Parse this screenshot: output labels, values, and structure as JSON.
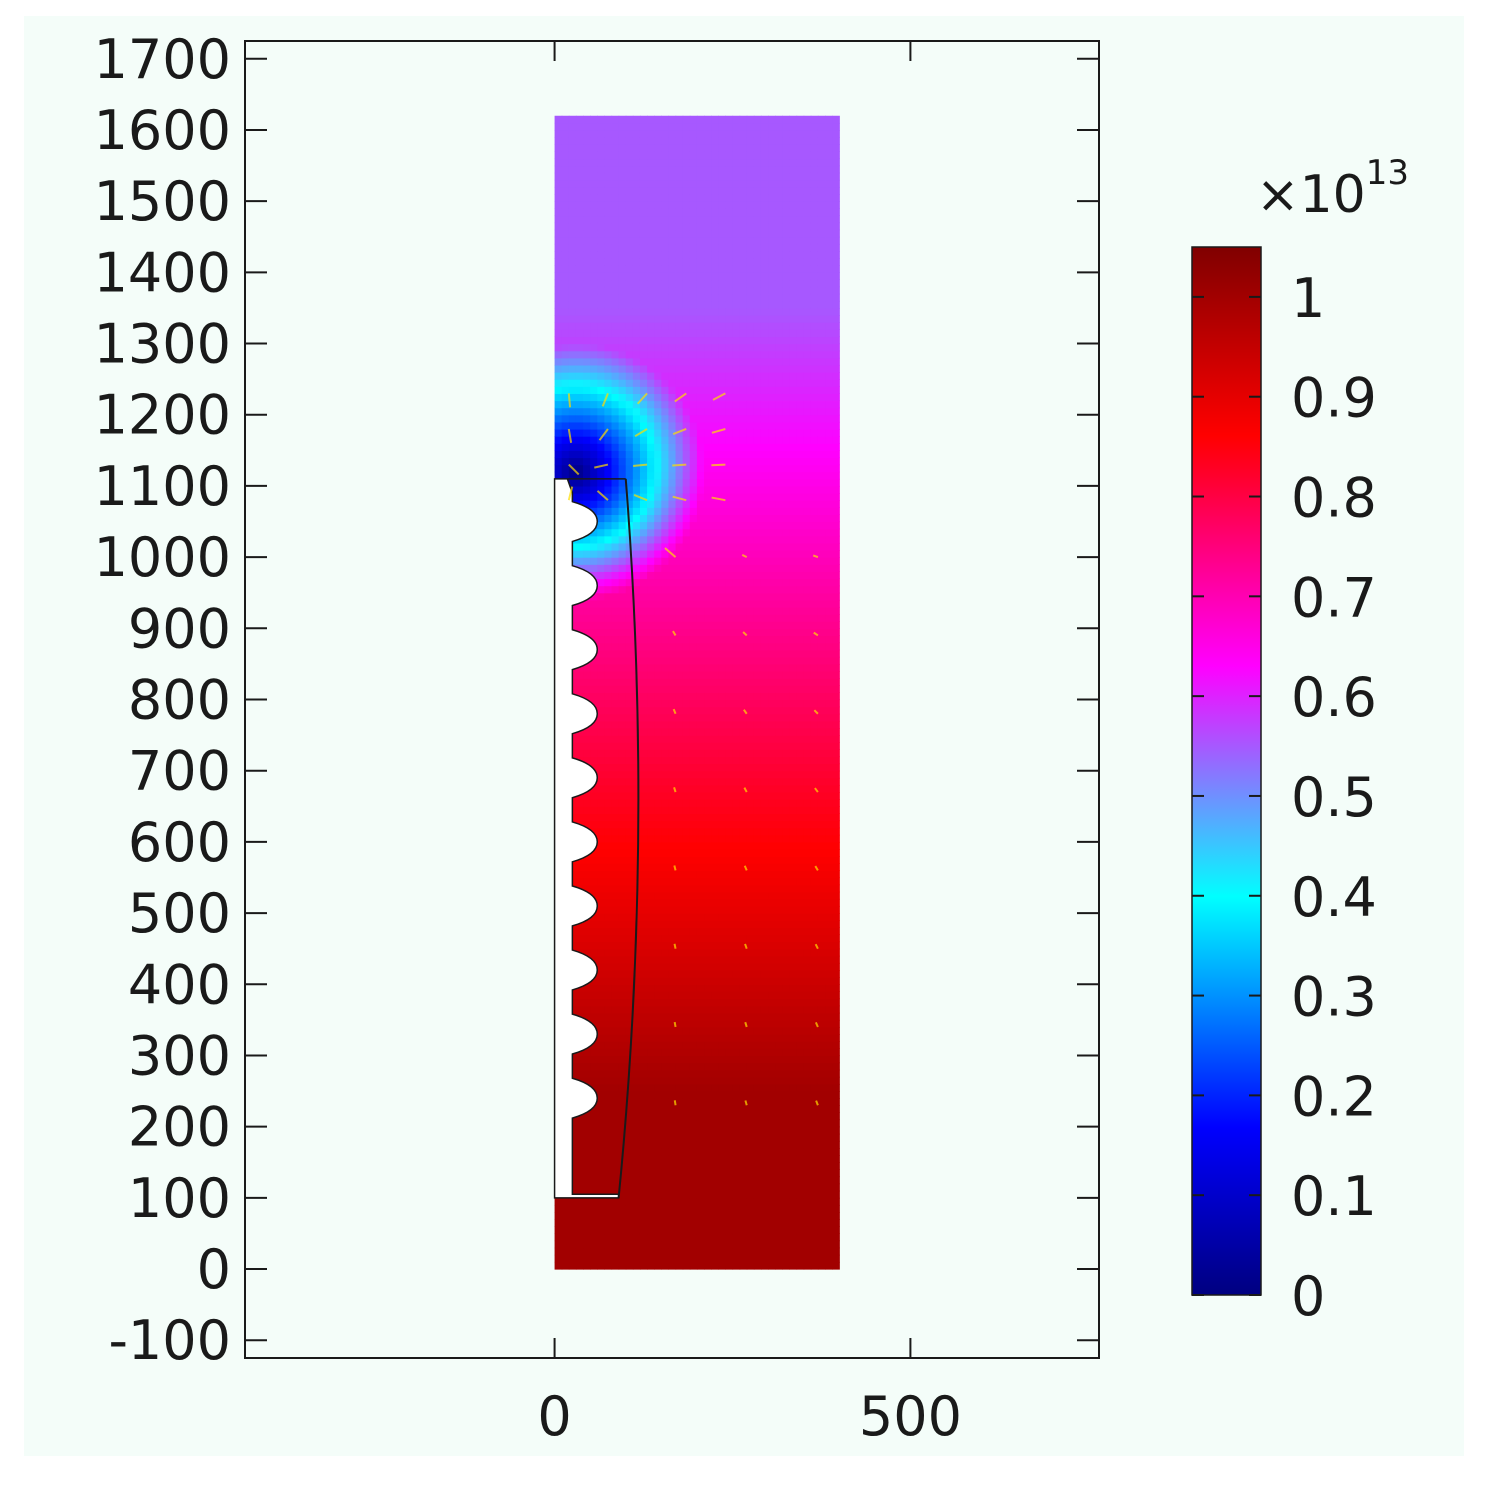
{
  "chart_data": {
    "type": "heatmap",
    "title": "",
    "xlabel": "",
    "ylabel": "",
    "xlim": [
      -435,
      765
    ],
    "ylim": [
      -125,
      1725
    ],
    "x_ticks": [
      0,
      500
    ],
    "y_ticks": [
      -100,
      0,
      100,
      200,
      300,
      400,
      500,
      600,
      700,
      800,
      900,
      1000,
      1100,
      1200,
      1300,
      1400,
      1500,
      1600,
      1700
    ],
    "grid": false,
    "domain_rect": {
      "x": [
        0,
        400
      ],
      "y": [
        0,
        1620
      ]
    },
    "electrode": {
      "top_y": 1110,
      "bottom_y": 100,
      "left_x": 0,
      "top_x": 100,
      "bottom_x": 90,
      "teeth": {
        "count": 10,
        "y_start": 1050,
        "pitch": 90,
        "depth": 35,
        "base_x": 25
      }
    },
    "field_center": {
      "x": 30,
      "y": 1120
    },
    "colorbar": {
      "min": 0,
      "max": 1.05,
      "multiplier_base": "×10",
      "multiplier_exponent": "13",
      "ticks": [
        0,
        0.1,
        0.2,
        0.3,
        0.4,
        0.5,
        0.6,
        0.7,
        0.8,
        0.9,
        1
      ],
      "colors": [
        "#000080",
        "#0000ff",
        "#00ffff",
        "#ff00ff",
        "#ff0000",
        "#800000"
      ],
      "color_positions": [
        0,
        0.16,
        0.38,
        0.6,
        0.82,
        1
      ]
    },
    "background_color": "#f4fdf9",
    "arrow_color": "#ffdd00"
  }
}
